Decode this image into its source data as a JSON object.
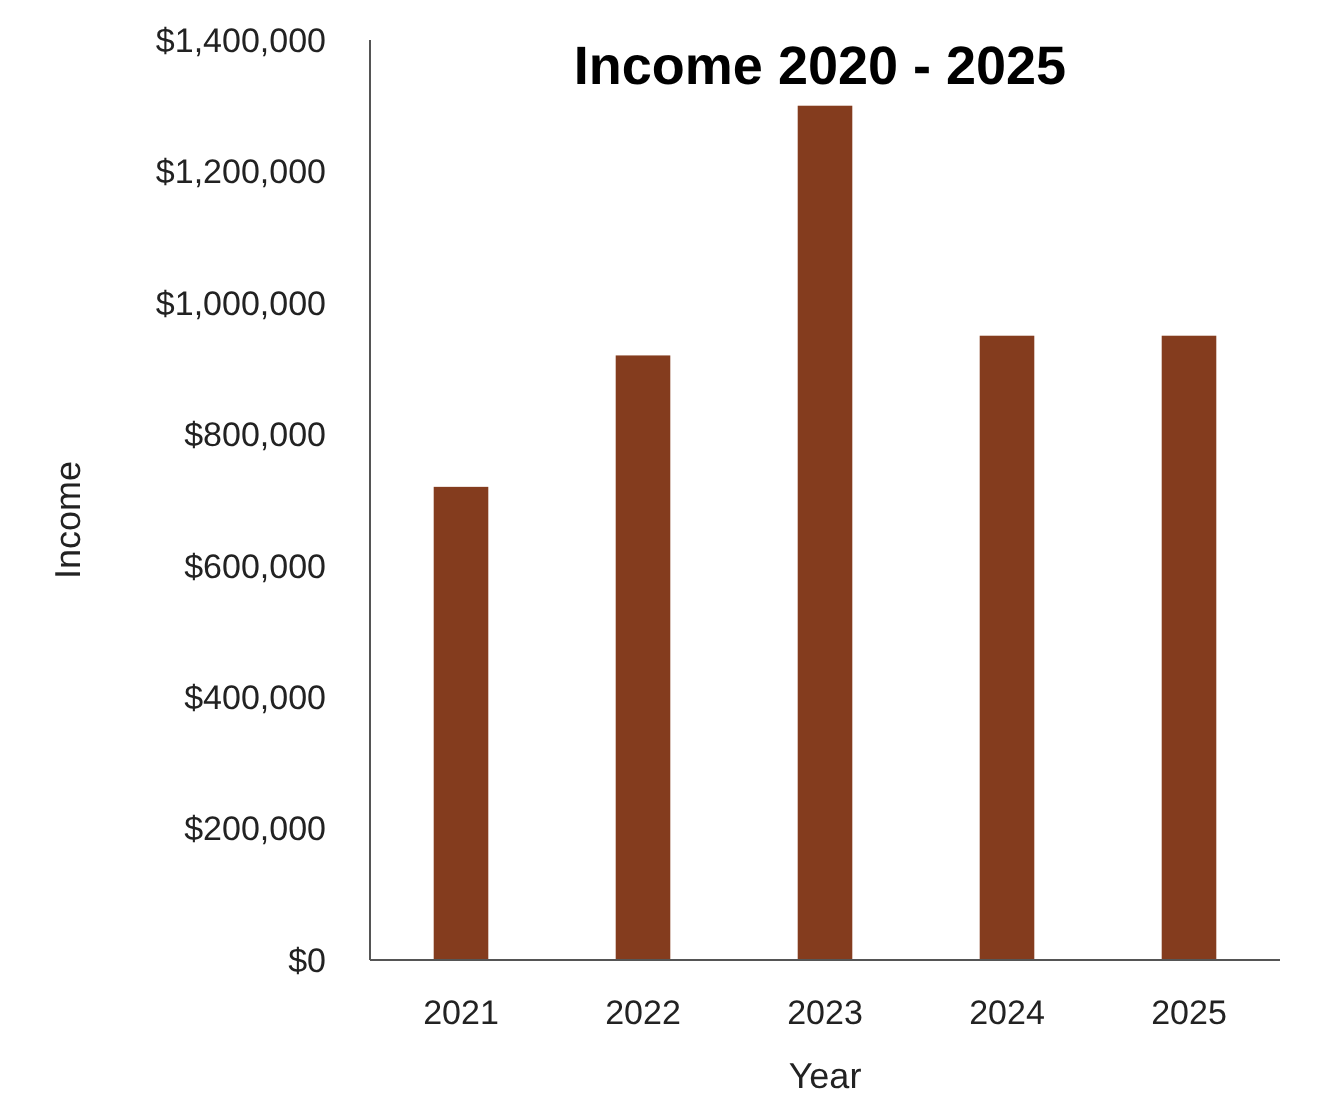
{
  "chart_data": {
    "type": "bar",
    "title": "Income 2020 - 2025",
    "xlabel": "Year",
    "ylabel": "Income",
    "categories": [
      "2021",
      "2022",
      "2023",
      "2024",
      "2025"
    ],
    "values": [
      720000,
      920000,
      1300000,
      950000,
      950000
    ],
    "color": "#843c1e",
    "ylim": [
      0,
      1400000
    ],
    "yticks": [
      {
        "value": 0,
        "label": "$0"
      },
      {
        "value": 200000,
        "label": "$200,000"
      },
      {
        "value": 400000,
        "label": "$400,000"
      },
      {
        "value": 600000,
        "label": "$600,000"
      },
      {
        "value": 800000,
        "label": "$800,000"
      },
      {
        "value": 1000000,
        "label": "$1,000,000"
      },
      {
        "value": 1200000,
        "label": "$1,200,000"
      },
      {
        "value": 1400000,
        "label": "$1,400,000"
      }
    ],
    "grid": false
  }
}
